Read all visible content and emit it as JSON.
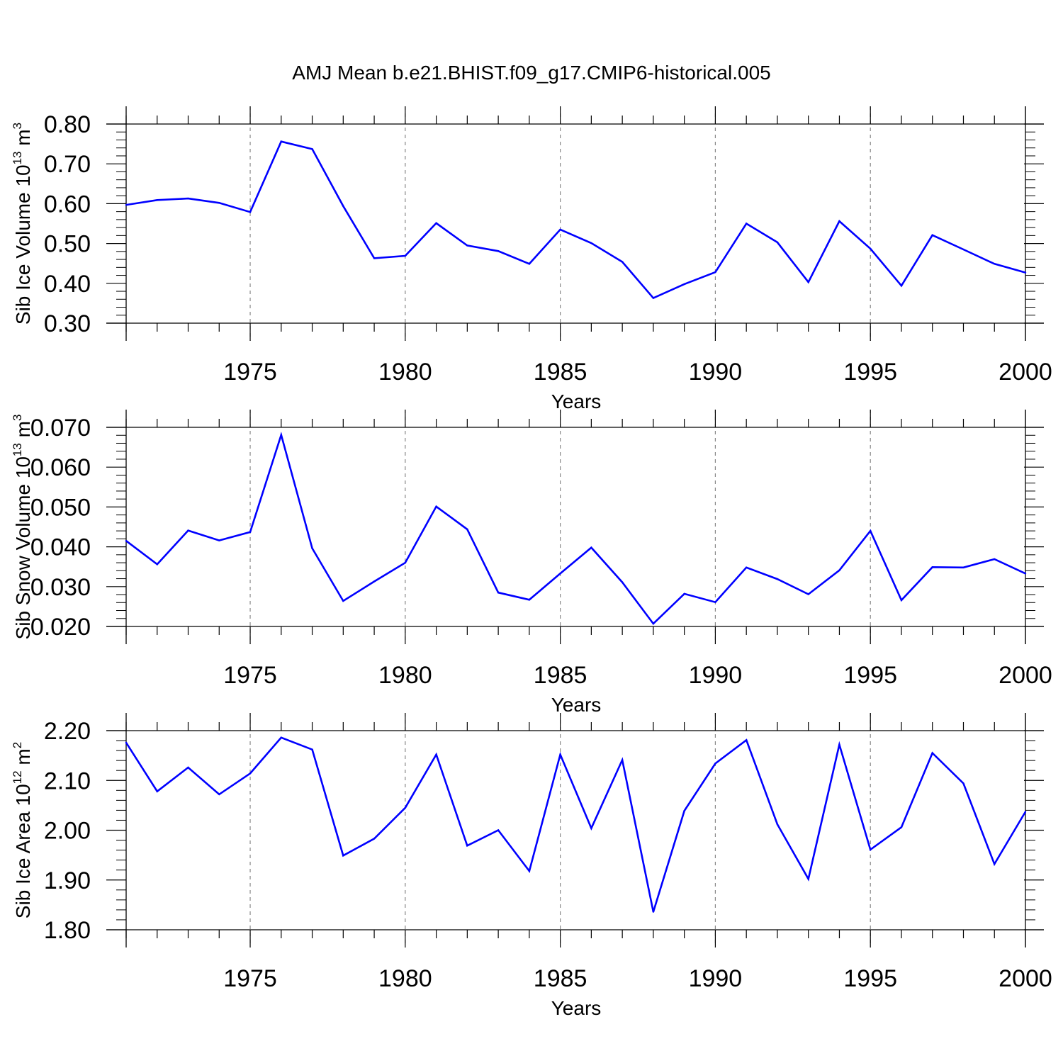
{
  "title": "AMJ Mean b.e21.BHIST.f09_g17.CMIP6-historical.005",
  "chart_data": [
    {
      "type": "line",
      "title": "AMJ Mean b.e21.BHIST.f09_g17.CMIP6-historical.005",
      "xlabel": "Years",
      "ylabel": {
        "name": "Sib Ice Volume",
        "base": "10",
        "exp": "13",
        "unit": "m",
        "unit_exp": "3"
      },
      "xlim": [
        1971,
        2000
      ],
      "ylim": [
        0.3,
        0.8
      ],
      "xticks": [
        1975,
        1980,
        1985,
        1990,
        1995,
        2000
      ],
      "xtick_labels": [
        "1975",
        "1980",
        "1985",
        "1990",
        "1995",
        "2000"
      ],
      "yticks": [
        0.3,
        0.4,
        0.5,
        0.6,
        0.7,
        0.8
      ],
      "ytick_labels": [
        "0.30",
        "0.40",
        "0.50",
        "0.60",
        "0.70",
        "0.80"
      ],
      "gridlines": "vertical dashed at major x ticks",
      "line_color": "#0000ff",
      "x": [
        1971,
        1972,
        1973,
        1974,
        1975,
        1976,
        1977,
        1978,
        1979,
        1980,
        1981,
        1982,
        1983,
        1984,
        1985,
        1986,
        1987,
        1988,
        1989,
        1990,
        1991,
        1992,
        1993,
        1994,
        1995,
        1996,
        1997,
        1998,
        1999,
        2000
      ],
      "values": [
        0.597,
        0.609,
        0.613,
        0.602,
        0.579,
        0.756,
        0.737,
        0.594,
        0.463,
        0.469,
        0.551,
        0.495,
        0.481,
        0.449,
        0.535,
        0.501,
        0.454,
        0.363,
        0.398,
        0.428,
        0.55,
        0.503,
        0.403,
        0.556,
        0.487,
        0.394,
        0.521,
        0.485,
        0.449,
        0.427
      ]
    },
    {
      "type": "line",
      "xlabel": "Years",
      "ylabel": {
        "name": "Sib Snow Volume",
        "base": "10",
        "exp": "13",
        "unit": "m",
        "unit_exp": "3"
      },
      "xlim": [
        1971,
        2000
      ],
      "ylim": [
        0.02,
        0.07
      ],
      "xticks": [
        1975,
        1980,
        1985,
        1990,
        1995,
        2000
      ],
      "xtick_labels": [
        "1975",
        "1980",
        "1985",
        "1990",
        "1995",
        "2000"
      ],
      "yticks": [
        0.02,
        0.03,
        0.04,
        0.05,
        0.06,
        0.07
      ],
      "ytick_labels": [
        "0.020",
        "0.030",
        "0.040",
        "0.050",
        "0.060",
        "0.070"
      ],
      "gridlines": "vertical dashed at major x ticks",
      "line_color": "#0000ff",
      "x": [
        1971,
        1972,
        1973,
        1974,
        1975,
        1976,
        1977,
        1978,
        1979,
        1980,
        1981,
        1982,
        1983,
        1984,
        1985,
        1986,
        1987,
        1988,
        1989,
        1990,
        1991,
        1992,
        1993,
        1994,
        1995,
        1996,
        1997,
        1998,
        1999,
        2000
      ],
      "values": [
        0.0415,
        0.0356,
        0.0441,
        0.0416,
        0.0437,
        0.0681,
        0.0396,
        0.0264,
        0.0313,
        0.036,
        0.0501,
        0.0444,
        0.0285,
        0.0267,
        0.0333,
        0.0398,
        0.0311,
        0.0207,
        0.0282,
        0.0261,
        0.0348,
        0.0319,
        0.0281,
        0.0341,
        0.044,
        0.0266,
        0.0349,
        0.0348,
        0.0369,
        0.0333
      ]
    },
    {
      "type": "line",
      "xlabel": "Years",
      "ylabel": {
        "name": "Sib Ice Area",
        "base": "10",
        "exp": "12",
        "unit": "m",
        "unit_exp": "2"
      },
      "xlim": [
        1971,
        2000
      ],
      "ylim": [
        1.8,
        2.2
      ],
      "xticks": [
        1975,
        1980,
        1985,
        1990,
        1995,
        2000
      ],
      "xtick_labels": [
        "1975",
        "1980",
        "1985",
        "1990",
        "1995",
        "2000"
      ],
      "yticks": [
        1.8,
        1.9,
        2.0,
        2.1,
        2.2
      ],
      "ytick_labels": [
        "1.80",
        "1.90",
        "2.00",
        "2.10",
        "2.20"
      ],
      "gridlines": "vertical dashed at major x ticks",
      "line_color": "#0000ff",
      "x": [
        1971,
        1972,
        1973,
        1974,
        1975,
        1976,
        1977,
        1978,
        1979,
        1980,
        1981,
        1982,
        1983,
        1984,
        1985,
        1986,
        1987,
        1988,
        1989,
        1990,
        1991,
        1992,
        1993,
        1994,
        1995,
        1996,
        1997,
        1998,
        1999,
        2000
      ],
      "values": [
        2.176,
        2.078,
        2.126,
        2.072,
        2.114,
        2.186,
        2.162,
        1.949,
        1.983,
        2.045,
        2.152,
        1.969,
        2.0,
        1.918,
        2.152,
        2.004,
        2.141,
        1.836,
        2.039,
        2.134,
        2.181,
        2.012,
        1.902,
        2.172,
        1.961,
        2.006,
        2.155,
        2.094,
        1.932,
        2.037
      ]
    }
  ]
}
